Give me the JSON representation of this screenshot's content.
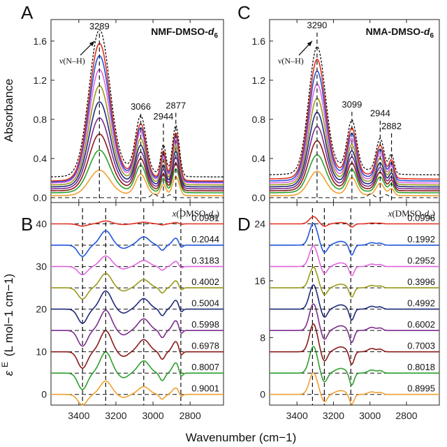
{
  "figure": {
    "xlabel": "Wavenumber (cm−1)",
    "ylabel_top": "Absorbance",
    "ylabel_bottom_symbol": "ε",
    "ylabel_bottom_sup": "E",
    "ylabel_bottom_unit": "(L mol−1 cm−1)"
  },
  "colors": [
    "#f0a030",
    "#2ca02c",
    "#8b1a1a",
    "#7b2d8e",
    "#1f2a7a",
    "#9a9a1a",
    "#e066e0",
    "#2255dd",
    "#e03020"
  ],
  "chart_data": [
    {
      "panel": "A",
      "type": "line",
      "system": "NMF-DMSO-d6",
      "system_main": "NMF-DMSO-",
      "system_d": "d",
      "system_sub": "6",
      "ylabel": "Absorbance",
      "xlim": [
        3550,
        2620
      ],
      "ylim": [
        -0.05,
        1.82
      ],
      "xticks": [
        3400,
        3200,
        3000,
        2800
      ],
      "yticks": [
        0.0,
        0.4,
        0.8,
        1.2,
        1.6
      ],
      "ytick_labels": [
        "0.0",
        "0.4",
        "0.8",
        "1.2",
        "1.6"
      ],
      "mode_label": "ν(N–H)",
      "peak_labels": [
        {
          "x": 3289,
          "y": 1.72,
          "text": "3289"
        },
        {
          "x": 3066,
          "y": 0.9,
          "text": "3066"
        },
        {
          "x": 2944,
          "y": 0.8,
          "text": "2944"
        },
        {
          "x": 2877,
          "y": 0.91,
          "text": "2877"
        }
      ],
      "peaks": [
        {
          "x": 3289,
          "w": 55,
          "h": 1.4
        },
        {
          "x": 3066,
          "w": 28,
          "h": 0.52
        },
        {
          "x": 2944,
          "w": 14,
          "h": 0.28
        },
        {
          "x": 2877,
          "w": 18,
          "h": 0.48
        }
      ],
      "peak_heights_1": [
        0.18,
        0.3,
        0.4,
        0.5,
        0.6,
        0.7,
        0.8,
        0.89,
        0.97
      ],
      "peak_heights_2": [
        0.4,
        0.5,
        0.58,
        0.66,
        0.74,
        0.82,
        0.9,
        0.95,
        1.0
      ],
      "baseline_offsets": [
        0.02,
        0.05,
        0.07,
        0.09,
        0.11,
        0.13,
        0.15,
        0.16,
        0.17
      ],
      "vlines": [
        3289,
        3066,
        2944,
        2877
      ]
    },
    {
      "panel": "C",
      "type": "line",
      "system": "NMA-DMSO-d6",
      "system_main": "NMA-DMSO-",
      "system_d": "d",
      "system_sub": "6",
      "xlim": [
        3550,
        2620
      ],
      "ylim": [
        -0.05,
        1.82
      ],
      "xticks": [
        3400,
        3200,
        3000,
        2800
      ],
      "yticks": [
        0.0,
        0.4,
        0.8,
        1.2,
        1.6
      ],
      "ytick_labels": [
        "0.0",
        "0.4",
        "0.8",
        "1.2",
        "1.6"
      ],
      "mode_label": "ν(N–H)",
      "peak_labels": [
        {
          "x": 3290,
          "y": 1.73,
          "text": "3290"
        },
        {
          "x": 3099,
          "y": 0.92,
          "text": "3099"
        },
        {
          "x": 2944,
          "y": 0.83,
          "text": "2944"
        },
        {
          "x": 2882,
          "y": 0.7,
          "text": "2882"
        }
      ],
      "peaks": [
        {
          "x": 3290,
          "w": 45,
          "h": 1.2
        },
        {
          "x": 3099,
          "w": 25,
          "h": 0.45
        },
        {
          "x": 2944,
          "w": 22,
          "h": 0.32
        },
        {
          "x": 2882,
          "w": 14,
          "h": 0.18
        }
      ],
      "peak_heights_1": [
        0.2,
        0.31,
        0.41,
        0.51,
        0.61,
        0.71,
        0.81,
        0.9,
        0.98
      ],
      "peak_heights_2": [
        0.38,
        0.48,
        0.56,
        0.64,
        0.72,
        0.8,
        0.88,
        0.94,
        1.0
      ],
      "baseline_offsets": [
        0.02,
        0.05,
        0.07,
        0.09,
        0.11,
        0.13,
        0.15,
        0.17,
        0.19
      ],
      "vlines": [
        3290,
        3099,
        2944,
        2882
      ]
    },
    {
      "panel": "B",
      "type": "line",
      "xlim": [
        3550,
        2620
      ],
      "ylim": [
        -2.5,
        45
      ],
      "xticks": [
        3400,
        3200,
        3000,
        2800
      ],
      "yticks": [
        0,
        10,
        20,
        30,
        40
      ],
      "ytick_labels": [
        "0",
        "10",
        "20",
        "30",
        "40"
      ],
      "legend_title_pre": "x(DMSO-",
      "legend_title_d": "d",
      "legend_title_sub": "6",
      "legend_title_post": ")",
      "offsets": [
        0,
        5,
        10,
        15,
        20,
        25,
        30,
        35,
        40
      ],
      "mole_fractions_bottom_to_top": [
        "0.9001",
        "0.8007",
        "0.6978",
        "0.5998",
        "0.5004",
        "0.4002",
        "0.3183",
        "0.2044",
        "0.0981"
      ],
      "features": [
        {
          "x": 3380,
          "w": 25,
          "h": -3.5
        },
        {
          "x": 3255,
          "w": 30,
          "h": 4.5
        },
        {
          "x": 3160,
          "w": 25,
          "h": -1.0
        },
        {
          "x": 3050,
          "w": 30,
          "h": 2.6
        },
        {
          "x": 2950,
          "w": 14,
          "h": -1.6
        },
        {
          "x": 2877,
          "w": 18,
          "h": 2.2
        },
        {
          "x": 2850,
          "w": 10,
          "h": -1.2
        }
      ],
      "feature_scale_top_to_bottom": [
        0.15,
        0.75,
        0.55,
        0.75,
        0.95,
        1.05,
        1.1,
        1.1,
        0.7
      ],
      "vlines": [
        3380,
        3255,
        3050,
        2850
      ]
    },
    {
      "panel": "D",
      "type": "line",
      "xlim": [
        3550,
        2620
      ],
      "ylim": [
        -1.5,
        27
      ],
      "xticks": [
        3400,
        3200,
        3000,
        2800
      ],
      "yticks": [
        0,
        8,
        16,
        24
      ],
      "ytick_labels": [
        "0",
        "8",
        "16",
        "24"
      ],
      "legend_title_pre": "x(DMSO-",
      "legend_title_d": "d",
      "legend_title_sub": "6",
      "legend_title_post": ")",
      "offsets": [
        0,
        3,
        6,
        9,
        12,
        15,
        18,
        21,
        24
      ],
      "mole_fractions_bottom_to_top": [
        "0.8995",
        "0.8018",
        "0.7003",
        "0.6002",
        "0.4992",
        "0.3996",
        "0.2952",
        "0.1992",
        "0.0996"
      ],
      "features": [
        {
          "x": 3310,
          "w": 22,
          "h": 3.4
        },
        {
          "x": 3250,
          "w": 16,
          "h": -1.2
        },
        {
          "x": 3160,
          "w": 30,
          "h": 0.6
        },
        {
          "x": 3100,
          "w": 13,
          "h": -1.6
        },
        {
          "x": 2990,
          "w": 20,
          "h": 0.4
        },
        {
          "x": 2944,
          "w": 14,
          "h": 0.3
        }
      ],
      "feature_scale_top_to_bottom": [
        0.3,
        0.9,
        0.85,
        0.85,
        1.0,
        1.1,
        1.15,
        1.1,
        0.9
      ],
      "vlines": [
        3315,
        3250,
        3105
      ]
    }
  ]
}
